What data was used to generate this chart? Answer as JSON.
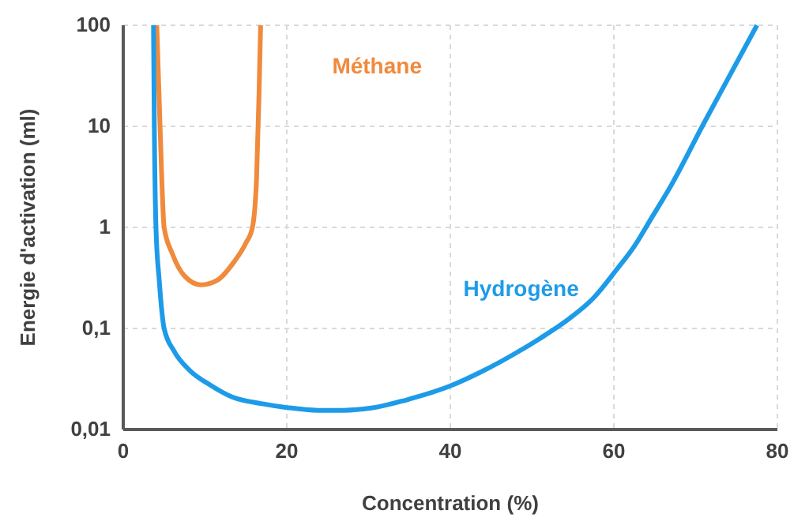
{
  "chart_data": {
    "type": "line",
    "xlabel": "Concentration (%)",
    "ylabel": "Energie d'activation (ml)",
    "log": "y",
    "grid": true,
    "legend": false,
    "marker": "none",
    "line_style": "solid",
    "xlim": [
      0,
      80
    ],
    "xticks": [
      0,
      20,
      40,
      60,
      80
    ],
    "ylim": [
      0.01,
      100
    ],
    "yticks": [
      {
        "value": 0.01,
        "label": "0,01"
      },
      {
        "value": 0.1,
        "label": "0,1"
      },
      1,
      10,
      100
    ],
    "series": [
      {
        "name": "Méthane",
        "color": "#f08a3c",
        "x": [
          4.1,
          4.5,
          5.0,
          6.0,
          7.5,
          9.5,
          11.5,
          13.5,
          15.0,
          15.8,
          16.3,
          16.6,
          16.8
        ],
        "values": [
          100,
          10,
          1,
          0.55,
          0.33,
          0.27,
          0.3,
          0.45,
          0.7,
          1,
          3,
          20,
          100
        ]
      },
      {
        "name": "Hydrogène",
        "color": "#1e9be8",
        "x": [
          3.7,
          3.8,
          4.0,
          4.4,
          5.0,
          6.2,
          8.2,
          10.5,
          13.3,
          17,
          20,
          23.8,
          27,
          30.3,
          35,
          40,
          44,
          48,
          51,
          54.6,
          57.5,
          60.2,
          62.5,
          64.5,
          67,
          71,
          74,
          77.5
        ],
        "values": [
          100,
          10,
          1,
          0.3,
          0.1,
          0.06,
          0.038,
          0.028,
          0.021,
          0.018,
          0.0165,
          0.0155,
          0.0155,
          0.0163,
          0.02,
          0.027,
          0.038,
          0.057,
          0.08,
          0.126,
          0.2,
          0.37,
          0.65,
          1.2,
          2.6,
          10.7,
          30,
          100
        ]
      }
    ]
  }
}
